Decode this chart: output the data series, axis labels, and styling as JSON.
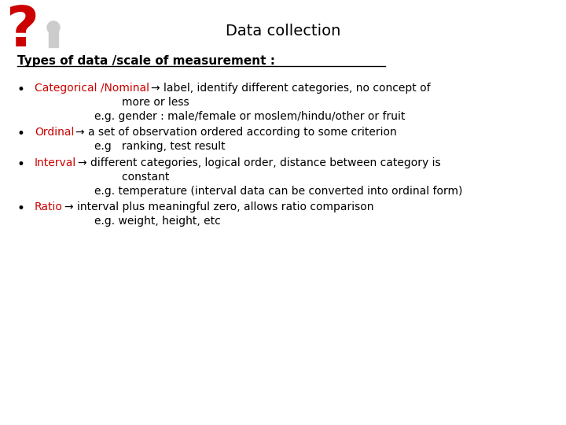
{
  "title": "Data collection",
  "title_fontsize": 14,
  "title_color": "#000000",
  "background_color": "#ffffff",
  "heading": "Types of data /scale of measurement :",
  "heading_fontsize": 11,
  "heading_color": "#000000",
  "bullet_color": "#000000",
  "red_color": "#cc0000",
  "black_color": "#000000",
  "fontsize": 10,
  "items": [
    {
      "label": "Categorical /Nominal",
      "arrow": "→",
      "rest": " label, identify different categories, no concept of",
      "sub_lines": [
        "        more or less",
        "e.g. gender : male/female or moslem/hindu/other or fruit"
      ]
    },
    {
      "label": "Ordinal",
      "arrow": "→",
      "rest": " a set of observation ordered according to some criterion",
      "sub_lines": [
        "e.g   ranking, test result"
      ]
    },
    {
      "label": "Interval",
      "arrow": "→",
      "rest": " different categories, logical order, distance between category is",
      "sub_lines": [
        "        constant",
        "e.g. temperature (interval data can be converted into ordinal form)"
      ]
    },
    {
      "label": "Ratio",
      "arrow": "→",
      "rest": " interval plus meaningful zero, allows ratio comparison",
      "sub_lines": [
        "e.g. weight, height, etc"
      ]
    }
  ]
}
